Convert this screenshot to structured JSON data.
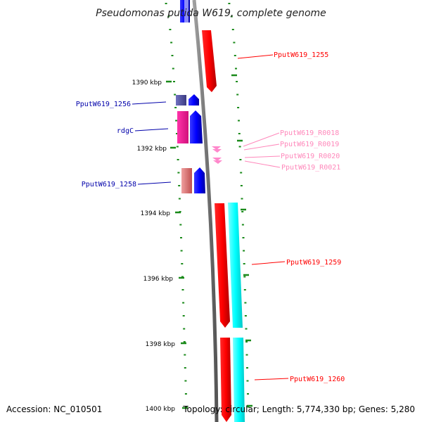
{
  "title": "Pseudomonas putida W619, complete genome",
  "footer": {
    "accession": "Accession: NC_010501",
    "summary": "Topology: circular; Length: 5,774,330 bp; Genes: 5,280"
  },
  "ticks": [
    "1390 kbp",
    "1392 kbp",
    "1394 kbp",
    "1396 kbp",
    "1398 kbp",
    "1400 kbp"
  ],
  "genes": {
    "g1255": "PputW619_1255",
    "g1256": "PputW619_1256",
    "rdgC": "rdgC",
    "r0018": "PputW619_R0018",
    "r0019": "PputW619_R0019",
    "r0020": "PputW619_R0020",
    "r0021": "PputW619_R0021",
    "g1258": "PputW619_1258",
    "g1259": "PputW619_1259",
    "g1260": "PputW619_1260"
  },
  "colors": {
    "backbone": "#7a7a7a",
    "tick": "#1a8a1a",
    "cds_forward": "#ff0000",
    "cds_reverse": "#0000ff",
    "rna": "#ff88cc",
    "cyan_track": "#00ffff",
    "label_red": "#ff0000",
    "label_blue": "#0000aa",
    "label_pink": "#ff88bb"
  }
}
